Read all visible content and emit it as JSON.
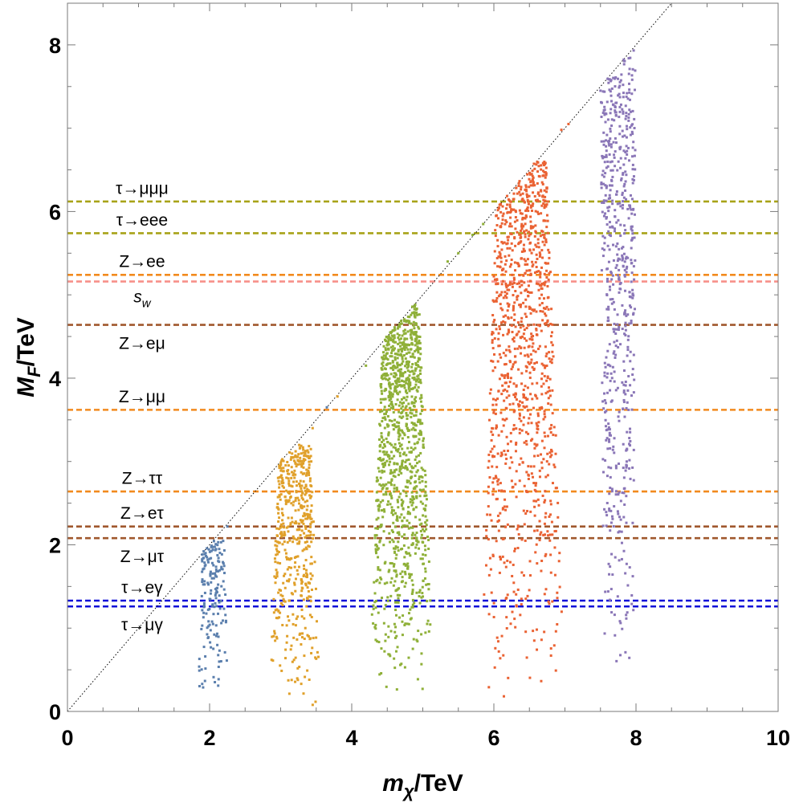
{
  "chart_data": {
    "type": "scatter",
    "title": "",
    "xlabel": {
      "main": "m",
      "sub": "χ",
      "rest": "/TeV"
    },
    "ylabel": {
      "main": "M",
      "sub": "F",
      "rest": "/TeV"
    },
    "xlim": [
      0,
      10
    ],
    "ylim": [
      0,
      8.5
    ],
    "x_ticks": [
      0,
      2,
      4,
      6,
      8,
      10
    ],
    "y_ticks": [
      0,
      2,
      4,
      6,
      8
    ],
    "x_tick_labels": [
      "0",
      "2",
      "4",
      "6",
      "8",
      "10"
    ],
    "y_tick_labels": [
      "0",
      "2",
      "4",
      "6",
      "8"
    ],
    "grid": false,
    "legend": "none",
    "diagonal": {
      "from": [
        0,
        0
      ],
      "to": [
        8.5,
        8.5
      ],
      "style": "dotted",
      "color": "#000000"
    },
    "series": [
      {
        "color": "#5b7fad",
        "m_chi_center": 2.05,
        "width": 0.42,
        "width_top": 0.32,
        "ymax": 2.05,
        "npoints": 170,
        "seed": 11
      },
      {
        "color": "#e0a02a",
        "m_chi_center": 3.2,
        "width": 0.72,
        "width_top": 0.45,
        "ymax": 3.2,
        "npoints": 520,
        "seed": 23
      },
      {
        "color": "#8fb038",
        "m_chi_center": 4.7,
        "width": 0.95,
        "width_top": 0.5,
        "ymax": 4.9,
        "npoints": 1250,
        "seed": 37
      },
      {
        "color": "#ea6233",
        "m_chi_center": 6.4,
        "width": 1.2,
        "width_top": 0.7,
        "ymax": 6.6,
        "npoints": 1150,
        "seed": 41
      },
      {
        "color": "#8a76b7",
        "m_chi_center": 7.75,
        "width": 0.42,
        "width_top": 0.5,
        "ymax": 7.95,
        "npoints": 640,
        "seed": 53
      }
    ],
    "boundary_points": [
      {
        "x": 2.25,
        "y": 2.22,
        "color": "#5b7fad"
      },
      {
        "x": 3.15,
        "y": 3.05,
        "color": "#e0a02a"
      },
      {
        "x": 3.45,
        "y": 3.4,
        "color": "#e0a02a"
      },
      {
        "x": 3.65,
        "y": 3.65,
        "color": "#5b7fad"
      },
      {
        "x": 3.8,
        "y": 3.78,
        "color": "#e0a02a"
      },
      {
        "x": 4.2,
        "y": 4.15,
        "color": "#8fb038"
      },
      {
        "x": 5.35,
        "y": 5.4,
        "color": "#8fb038"
      },
      {
        "x": 5.5,
        "y": 5.5,
        "color": "#8fb038"
      },
      {
        "x": 5.7,
        "y": 5.72,
        "color": "#8fb038"
      },
      {
        "x": 5.85,
        "y": 5.85,
        "color": "#8fb038"
      },
      {
        "x": 6.95,
        "y": 6.98,
        "color": "#ea6233"
      },
      {
        "x": 7.05,
        "y": 7.05,
        "color": "#ea6233"
      },
      {
        "x": 7.5,
        "y": 7.45,
        "color": "#8a76b7"
      }
    ],
    "hlines": [
      {
        "label": "τ→μμμ",
        "y": 6.12,
        "color": "#a8a318"
      },
      {
        "label": "τ→eee",
        "y": 5.74,
        "color": "#a8a318"
      },
      {
        "label": "Z→ee",
        "y": 5.24,
        "color": "#f28a1e"
      },
      {
        "label": "",
        "y": 5.16,
        "color": "#f7918a"
      },
      {
        "label": "Z→eμ",
        "y": 4.64,
        "color": "#a0582d"
      },
      {
        "label": "Z→μμ",
        "y": 3.62,
        "color": "#f28a1e"
      },
      {
        "label": "Z→ττ",
        "y": 2.64,
        "color": "#f28a1e"
      },
      {
        "label": "Z→eτ",
        "y": 2.22,
        "color": "#a0582d"
      },
      {
        "label": "Z→μτ",
        "y": 2.08,
        "color": "#a0582d"
      },
      {
        "label": "τ→eγ",
        "y": 1.33,
        "color": "#1010d8"
      },
      {
        "label": "τ→μγ",
        "y": 1.26,
        "color": "#1010d8"
      }
    ],
    "annotations": [
      {
        "text": "τ→μμμ",
        "x": 1.05,
        "y": 6.28
      },
      {
        "text": "τ→eee",
        "x": 1.05,
        "y": 5.9
      },
      {
        "text": "Z→ee",
        "x": 1.05,
        "y": 5.4
      },
      {
        "text": "s",
        "sub": "w",
        "x": 1.05,
        "y": 4.98
      },
      {
        "text": "Z→eμ",
        "x": 1.05,
        "y": 4.42
      },
      {
        "text": "Z→μμ",
        "x": 1.05,
        "y": 3.78
      },
      {
        "text": "Z→ττ",
        "x": 1.05,
        "y": 2.8
      },
      {
        "text": "Z→eτ",
        "x": 1.05,
        "y": 2.38
      },
      {
        "text": "Z→μτ",
        "x": 1.05,
        "y": 1.86
      },
      {
        "text": "τ→eγ",
        "x": 1.05,
        "y": 1.49
      },
      {
        "text": "τ→μγ",
        "x": 1.05,
        "y": 1.04
      }
    ]
  }
}
